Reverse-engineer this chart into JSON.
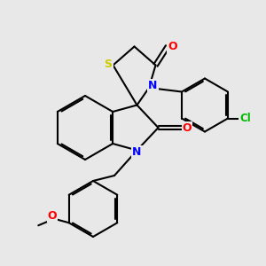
{
  "background_color": "#e8e8e8",
  "bond_color": "#000000",
  "bond_width": 1.5,
  "atom_colors": {
    "N": "#0000ff",
    "O": "#ff0000",
    "S": "#cccc00",
    "Cl": "#00bb00",
    "C": "#000000"
  },
  "dbo": 0.07
}
